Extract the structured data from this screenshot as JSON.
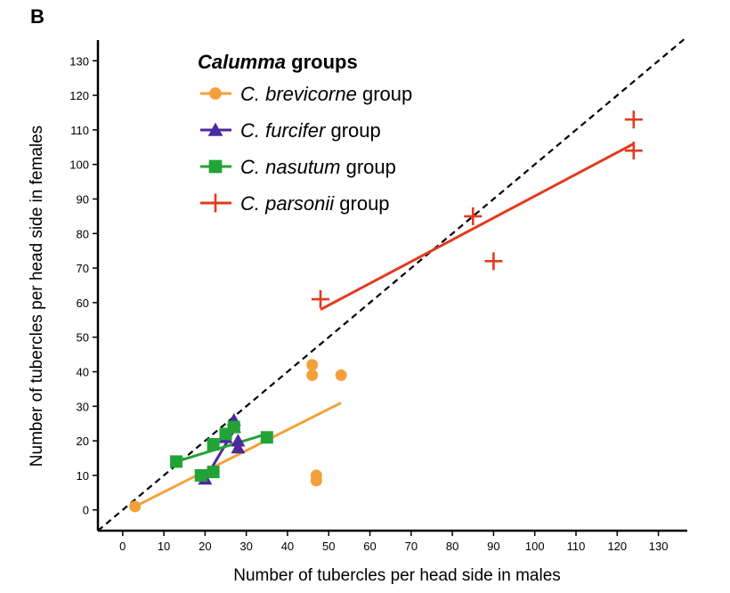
{
  "panel_label": "B",
  "chart_data": {
    "type": "scatter",
    "xlabel": "Number of tubercles per head side in males",
    "ylabel": "Number of tubercles per head side in females",
    "xlim": [
      -6,
      137
    ],
    "ylim": [
      -6,
      136
    ],
    "xticks": [
      0,
      10,
      20,
      30,
      40,
      50,
      60,
      70,
      80,
      90,
      100,
      110,
      120,
      130
    ],
    "yticks": [
      0,
      10,
      20,
      30,
      40,
      50,
      60,
      70,
      80,
      90,
      100,
      110,
      120,
      130
    ],
    "grid": false,
    "reference_line": {
      "style": "dashed",
      "color": "#000000",
      "from": [
        -6,
        -6
      ],
      "to": [
        137,
        137
      ]
    },
    "legend": {
      "position": "top-left",
      "title_italic": "Calumma",
      "title_rest": " groups"
    },
    "series": [
      {
        "name_italic": "C. brevicorne",
        "name_rest": " group",
        "marker": "circle",
        "color": "#F4A03A",
        "points": [
          [
            3,
            1
          ],
          [
            46,
            42
          ],
          [
            46,
            39
          ],
          [
            53,
            39
          ],
          [
            47,
            10
          ],
          [
            47,
            8.5
          ]
        ],
        "trend": [
          [
            3,
            1
          ],
          [
            53,
            31
          ]
        ]
      },
      {
        "name_italic": "C. furcifer",
        "name_rest": " group",
        "marker": "triangle",
        "color": "#4B2A9E",
        "points": [
          [
            20,
            9
          ],
          [
            27,
            26
          ],
          [
            27,
            24
          ],
          [
            28,
            20
          ],
          [
            28,
            18
          ],
          [
            25,
            21
          ]
        ],
        "trend": [
          [
            20,
            9
          ],
          [
            28,
            25
          ]
        ]
      },
      {
        "name_italic": "C. nasutum",
        "name_rest": " group",
        "marker": "square",
        "color": "#22A336",
        "points": [
          [
            13,
            14
          ],
          [
            19,
            10
          ],
          [
            22,
            11
          ],
          [
            22,
            19
          ],
          [
            25,
            22
          ],
          [
            27,
            24
          ],
          [
            35,
            21
          ]
        ],
        "trend": [
          [
            13,
            14
          ],
          [
            35,
            22
          ]
        ]
      },
      {
        "name_italic": "C. parsonii",
        "name_rest": " group",
        "marker": "plus",
        "color": "#E33A1E",
        "points": [
          [
            48,
            61
          ],
          [
            85,
            85
          ],
          [
            90,
            72
          ],
          [
            124,
            113
          ],
          [
            124,
            104
          ]
        ],
        "trend": [
          [
            48,
            58
          ],
          [
            124,
            106
          ]
        ]
      }
    ]
  }
}
